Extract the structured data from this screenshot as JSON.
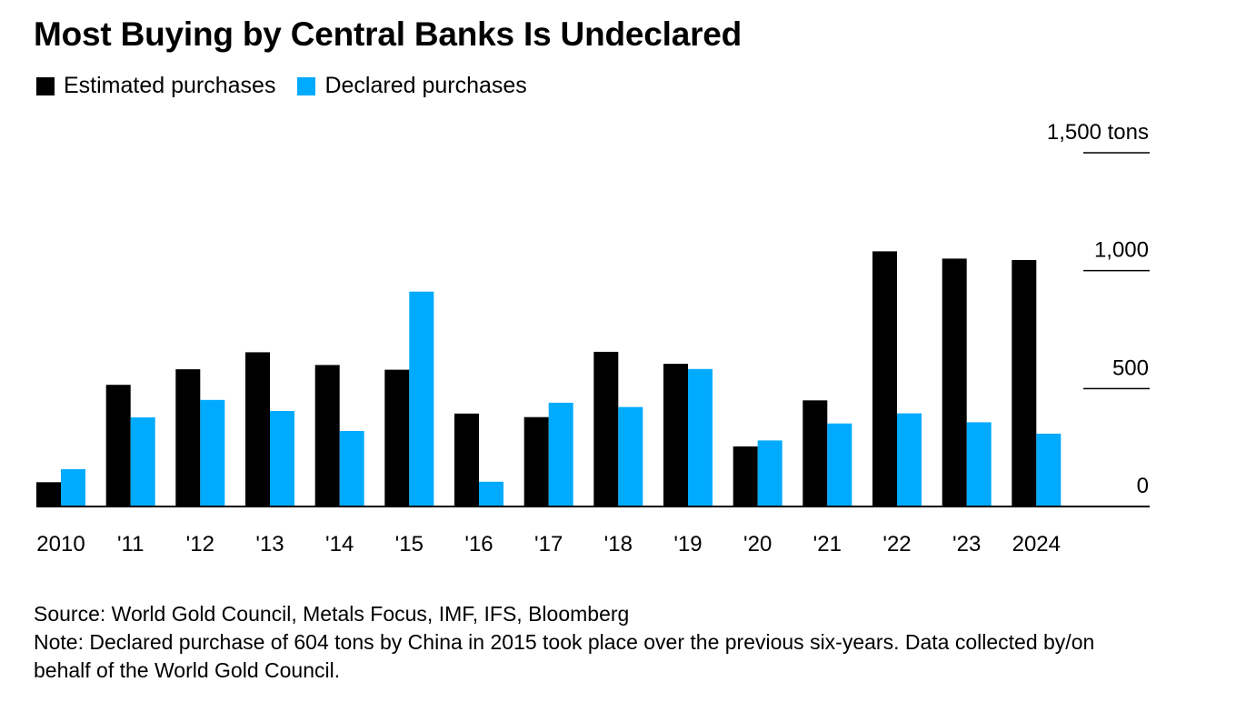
{
  "chart_data": {
    "type": "bar",
    "title": "Most Buying by Central Banks Is Undeclared",
    "unit_label": "tons",
    "categories": [
      "2010",
      "'11",
      "'12",
      "'13",
      "'14",
      "'15",
      "'16",
      "'17",
      "'18",
      "'19",
      "'20",
      "'21",
      "'22",
      "'23",
      "2024"
    ],
    "series": [
      {
        "name": "Estimated purchases",
        "color": "#000000",
        "values": [
          103,
          516,
          582,
          654,
          600,
          580,
          394,
          379,
          656,
          605,
          255,
          450,
          1082,
          1051,
          1045
        ]
      },
      {
        "name": "Declared purchases",
        "color": "#00aaff",
        "values": [
          158,
          378,
          452,
          405,
          320,
          911,
          105,
          440,
          422,
          583,
          280,
          352,
          395,
          357,
          309
        ]
      }
    ],
    "ylim": [
      0,
      1500
    ],
    "yticks": [
      {
        "value": 0,
        "label": "0"
      },
      {
        "value": 500,
        "label": "500"
      },
      {
        "value": 1000,
        "label": "1,000"
      },
      {
        "value": 1500,
        "label": "1,500 tons"
      }
    ],
    "legend_position": "top-left",
    "xlabel": "",
    "ylabel": ""
  },
  "footer": {
    "source": "Source: World Gold Council, Metals Focus, IMF, IFS, Bloomberg",
    "note": "Note: Declared purchase of 604 tons by China in 2015 took place over the previous six-years. Data collected by/on behalf of the World Gold Council."
  }
}
